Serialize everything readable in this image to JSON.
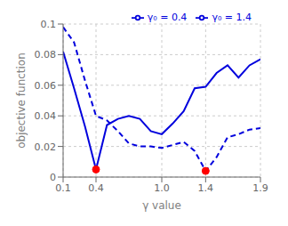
{
  "chart_data": {
    "type": "line",
    "xlabel": "γ value",
    "ylabel": "objective function",
    "x": [
      0.1,
      0.2,
      0.3,
      0.4,
      0.5,
      0.6,
      0.7,
      0.8,
      0.9,
      1.0,
      1.1,
      1.2,
      1.3,
      1.4,
      1.5,
      1.6,
      1.7,
      1.8,
      1.9
    ],
    "xlim": [
      0.1,
      1.9
    ],
    "xticks": [
      0.1,
      0.4,
      {
        "value": 1.0,
        "label": "1.0"
      },
      1.4,
      1.9
    ],
    "ylim": [
      0.0,
      0.1
    ],
    "yticks": [
      0,
      0.02,
      0.04,
      0.06,
      0.08,
      0.1
    ],
    "grid": true,
    "legend": "upper right",
    "series": [
      {
        "name": "γ₀ = 0.4",
        "color": "#0000dd",
        "line_style": "solid",
        "values": [
          0.082,
          0.058,
          0.033,
          0.005,
          0.034,
          0.038,
          0.04,
          0.038,
          0.03,
          0.028,
          0.035,
          0.043,
          0.058,
          0.059,
          0.068,
          0.073,
          0.065,
          0.073,
          0.077
        ]
      },
      {
        "name": "γ₀ = 1.4",
        "color": "#0000dd",
        "line_style": "dashed",
        "values": [
          0.098,
          0.088,
          0.063,
          0.04,
          0.037,
          0.03,
          0.022,
          0.02,
          0.02,
          0.019,
          0.021,
          0.023,
          0.017,
          0.004,
          0.013,
          0.026,
          0.028,
          0.031,
          0.032
        ]
      },
      {
        "type": "scatter",
        "marker": "circle",
        "color": "#ff0000",
        "values": [
          null,
          null,
          null,
          0.005,
          null,
          null,
          null,
          null,
          null,
          null,
          null,
          null,
          null,
          0.004,
          null,
          null,
          null,
          null,
          null
        ]
      }
    ]
  }
}
